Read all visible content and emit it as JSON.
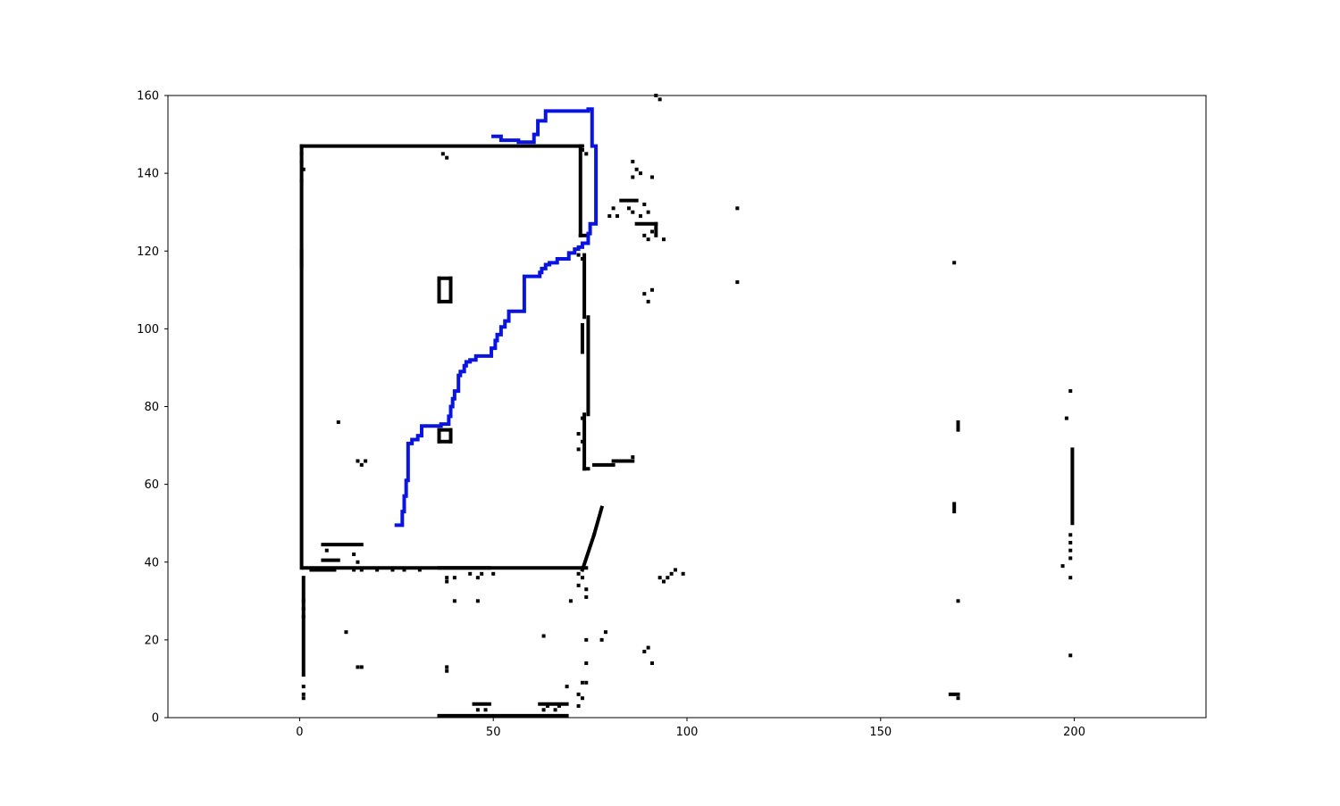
{
  "chart_data": {
    "type": "scatter",
    "title": "",
    "xlabel": "",
    "ylabel": "",
    "xlim": [
      -34,
      234
    ],
    "ylim": [
      0,
      160
    ],
    "xticks": [
      0,
      50,
      100,
      150,
      200
    ],
    "yticks": [
      0,
      20,
      40,
      60,
      80,
      100,
      120,
      140,
      160
    ],
    "grid": false,
    "colors": {
      "obstacle": "#000000",
      "path": "#0a14e0",
      "axes": "#000000",
      "background": "#ffffff"
    },
    "obstacle_segments": [
      {
        "x": [
          0.5,
          73
        ],
        "y": [
          147,
          147
        ]
      },
      {
        "x": [
          0.5,
          0.5
        ],
        "y": [
          38.5,
          147
        ]
      },
      {
        "x": [
          1,
          74
        ],
        "y": [
          38.5,
          38.5
        ]
      },
      {
        "x": [
          72.5,
          72.5
        ],
        "y": [
          124,
          147
        ]
      },
      {
        "x": [
          72.5,
          74
        ],
        "y": [
          124,
          124
        ]
      },
      {
        "x": [
          73.5,
          73.5
        ],
        "y": [
          103,
          119
        ]
      },
      {
        "x": [
          74.5,
          74.5
        ],
        "y": [
          78,
          103
        ]
      },
      {
        "x": [
          73.5,
          73.5
        ],
        "y": [
          64,
          78
        ]
      },
      {
        "x": [
          73.5,
          74.5
        ],
        "y": [
          64,
          64
        ]
      },
      {
        "x": [
          76,
          81
        ],
        "y": [
          65,
          65
        ]
      },
      {
        "x": [
          81,
          86
        ],
        "y": [
          66,
          66
        ]
      },
      {
        "x": [
          1,
          1
        ],
        "y": [
          11,
          36
        ]
      },
      {
        "x": [
          36,
          69
        ],
        "y": [
          0.5,
          0.5
        ]
      },
      {
        "x": [
          73,
          76
        ],
        "y": [
          38,
          47
        ]
      },
      {
        "x": [
          76,
          78
        ],
        "y": [
          47,
          54
        ]
      },
      {
        "x": [
          199.5,
          199.5
        ],
        "y": [
          50,
          69
        ]
      },
      {
        "x": [
          36,
          39
        ],
        "y": [
          107,
          107
        ]
      },
      {
        "x": [
          36,
          39
        ],
        "y": [
          113,
          113
        ]
      },
      {
        "x": [
          36,
          36
        ],
        "y": [
          107,
          113
        ]
      },
      {
        "x": [
          39,
          39
        ],
        "y": [
          107,
          113
        ]
      },
      {
        "x": [
          36,
          39
        ],
        "y": [
          71,
          71
        ]
      },
      {
        "x": [
          36,
          39
        ],
        "y": [
          74,
          74
        ]
      },
      {
        "x": [
          36,
          36
        ],
        "y": [
          71,
          74
        ]
      },
      {
        "x": [
          39,
          39
        ],
        "y": [
          71,
          74
        ]
      },
      {
        "x": [
          6,
          16
        ],
        "y": [
          44.5,
          44.5
        ]
      },
      {
        "x": [
          6,
          10
        ],
        "y": [
          40.5,
          40.5
        ]
      },
      {
        "x": [
          3,
          9
        ],
        "y": [
          38,
          38
        ]
      },
      {
        "x": [
          36,
          49
        ],
        "y": [
          38.5,
          38.5
        ]
      },
      {
        "x": [
          62,
          69
        ],
        "y": [
          3.5,
          3.5
        ]
      },
      {
        "x": [
          45,
          49
        ],
        "y": [
          3.5,
          3.5
        ]
      },
      {
        "x": [
          83,
          87
        ],
        "y": [
          133,
          133
        ]
      },
      {
        "x": [
          87,
          92
        ],
        "y": [
          127,
          127
        ]
      },
      {
        "x": [
          92,
          92
        ],
        "y": [
          124,
          127
        ]
      },
      {
        "x": [
          0.5,
          0.5
        ],
        "y": [
          116,
          120
        ]
      },
      {
        "x": [
          73,
          73
        ],
        "y": [
          94,
          101
        ]
      },
      {
        "x": [
          168,
          170
        ],
        "y": [
          6,
          6
        ]
      },
      {
        "x": [
          170,
          170
        ],
        "y": [
          74,
          76
        ]
      },
      {
        "x": [
          169,
          169
        ],
        "y": [
          53,
          55
        ]
      }
    ],
    "obstacle_points": [
      {
        "x": 0.5,
        "y": 145
      },
      {
        "x": 0.5,
        "y": 143
      },
      {
        "x": 1,
        "y": 141
      },
      {
        "x": 0.5,
        "y": 138
      },
      {
        "x": 37,
        "y": 145
      },
      {
        "x": 38,
        "y": 144
      },
      {
        "x": 73,
        "y": 146
      },
      {
        "x": 74,
        "y": 145
      },
      {
        "x": 92,
        "y": 160
      },
      {
        "x": 93,
        "y": 159
      },
      {
        "x": 86,
        "y": 143
      },
      {
        "x": 87,
        "y": 141
      },
      {
        "x": 88,
        "y": 140
      },
      {
        "x": 86,
        "y": 139
      },
      {
        "x": 91,
        "y": 139
      },
      {
        "x": 80,
        "y": 129
      },
      {
        "x": 81,
        "y": 131
      },
      {
        "x": 82,
        "y": 129
      },
      {
        "x": 85,
        "y": 131
      },
      {
        "x": 86,
        "y": 130
      },
      {
        "x": 89,
        "y": 132
      },
      {
        "x": 90,
        "y": 130
      },
      {
        "x": 88,
        "y": 129
      },
      {
        "x": 89,
        "y": 124
      },
      {
        "x": 90,
        "y": 123
      },
      {
        "x": 91,
        "y": 125
      },
      {
        "x": 94,
        "y": 123
      },
      {
        "x": 113,
        "y": 131
      },
      {
        "x": 113,
        "y": 112
      },
      {
        "x": 169,
        "y": 117
      },
      {
        "x": 89,
        "y": 109
      },
      {
        "x": 90,
        "y": 107
      },
      {
        "x": 91,
        "y": 110
      },
      {
        "x": 72,
        "y": 119
      },
      {
        "x": 73,
        "y": 118
      },
      {
        "x": 10,
        "y": 76
      },
      {
        "x": 15,
        "y": 66
      },
      {
        "x": 16,
        "y": 65
      },
      {
        "x": 17,
        "y": 66
      },
      {
        "x": 86,
        "y": 67
      },
      {
        "x": 73,
        "y": 77
      },
      {
        "x": 72,
        "y": 73
      },
      {
        "x": 73,
        "y": 71
      },
      {
        "x": 72,
        "y": 69
      },
      {
        "x": 199,
        "y": 84
      },
      {
        "x": 198,
        "y": 77
      },
      {
        "x": 199,
        "y": 47
      },
      {
        "x": 199,
        "y": 45
      },
      {
        "x": 199,
        "y": 43
      },
      {
        "x": 199,
        "y": 41
      },
      {
        "x": 197,
        "y": 39
      },
      {
        "x": 199,
        "y": 36
      },
      {
        "x": 199,
        "y": 16
      },
      {
        "x": 170,
        "y": 30
      },
      {
        "x": 7,
        "y": 43
      },
      {
        "x": 14,
        "y": 42
      },
      {
        "x": 15,
        "y": 40
      },
      {
        "x": 14,
        "y": 38
      },
      {
        "x": 16,
        "y": 38
      },
      {
        "x": 20,
        "y": 38
      },
      {
        "x": 24,
        "y": 38
      },
      {
        "x": 27,
        "y": 38
      },
      {
        "x": 31,
        "y": 38
      },
      {
        "x": 38,
        "y": 36
      },
      {
        "x": 38,
        "y": 35
      },
      {
        "x": 40,
        "y": 36
      },
      {
        "x": 44,
        "y": 37
      },
      {
        "x": 47,
        "y": 37
      },
      {
        "x": 46,
        "y": 36
      },
      {
        "x": 50,
        "y": 37
      },
      {
        "x": 72,
        "y": 37
      },
      {
        "x": 73,
        "y": 36
      },
      {
        "x": 72,
        "y": 34
      },
      {
        "x": 74,
        "y": 33
      },
      {
        "x": 74,
        "y": 31
      },
      {
        "x": 70,
        "y": 30
      },
      {
        "x": 40,
        "y": 30
      },
      {
        "x": 46,
        "y": 30
      },
      {
        "x": 93,
        "y": 36
      },
      {
        "x": 94,
        "y": 35
      },
      {
        "x": 95,
        "y": 36
      },
      {
        "x": 96,
        "y": 37
      },
      {
        "x": 97,
        "y": 38
      },
      {
        "x": 99,
        "y": 37
      },
      {
        "x": 1,
        "y": 30
      },
      {
        "x": 1,
        "y": 28
      },
      {
        "x": 1,
        "y": 26
      },
      {
        "x": 12,
        "y": 22
      },
      {
        "x": 63,
        "y": 21
      },
      {
        "x": 74,
        "y": 20
      },
      {
        "x": 78,
        "y": 20
      },
      {
        "x": 79,
        "y": 22
      },
      {
        "x": 89,
        "y": 17
      },
      {
        "x": 90,
        "y": 18
      },
      {
        "x": 91,
        "y": 14
      },
      {
        "x": 74,
        "y": 14
      },
      {
        "x": 15,
        "y": 13
      },
      {
        "x": 16,
        "y": 13
      },
      {
        "x": 38,
        "y": 13
      },
      {
        "x": 38,
        "y": 12
      },
      {
        "x": 1,
        "y": 8
      },
      {
        "x": 1,
        "y": 6
      },
      {
        "x": 1,
        "y": 5
      },
      {
        "x": 69,
        "y": 8
      },
      {
        "x": 73,
        "y": 9
      },
      {
        "x": 74,
        "y": 9
      },
      {
        "x": 72,
        "y": 6
      },
      {
        "x": 73,
        "y": 5
      },
      {
        "x": 72,
        "y": 3
      },
      {
        "x": 46,
        "y": 2
      },
      {
        "x": 48,
        "y": 2
      },
      {
        "x": 63,
        "y": 2
      },
      {
        "x": 64,
        "y": 3
      },
      {
        "x": 66,
        "y": 2
      },
      {
        "x": 67,
        "y": 3
      },
      {
        "x": 170,
        "y": 5
      }
    ],
    "series": [
      {
        "x": [
          24.5,
          26.5,
          26.5,
          27,
          27,
          27.5,
          27.5,
          28,
          28,
          29,
          29,
          30.5,
          30.5,
          31.5,
          31.5,
          32,
          32,
          36.5,
          36.5,
          38.5,
          38.5,
          39,
          39,
          39.5,
          39.5,
          40,
          40,
          41,
          41,
          41.5,
          41.5,
          42.5,
          42.5,
          43,
          43,
          44,
          44,
          44.5,
          44.5,
          45.5,
          45.5,
          49.5,
          49.5,
          50.5,
          50.5,
          51,
          51,
          52,
          52,
          53,
          53,
          54,
          54,
          58,
          58,
          62,
          62,
          62.5,
          62.5,
          63.5,
          63.5,
          64.5,
          64.5,
          66.5,
          66.5,
          69.5,
          69.5,
          71,
          71,
          72,
          72,
          73,
          73,
          74.5,
          74.5,
          75,
          75,
          76.5,
          76.5,
          75.5,
          75.5,
          74.5,
          74.5,
          73.5,
          73.5,
          63.5,
          63.5,
          61.5,
          61.5,
          60.5,
          60.5,
          56.5,
          56.5,
          52,
          52,
          49.5
        ],
        "y": [
          49.5,
          49.5,
          53,
          53,
          57,
          57,
          61,
          61,
          70.5,
          70.5,
          71.5,
          71.5,
          72.5,
          72.5,
          75,
          75,
          75,
          75,
          75.5,
          75.5,
          77.5,
          77.5,
          80,
          80,
          82,
          82,
          84,
          84,
          88,
          88,
          89,
          89,
          90.5,
          90.5,
          91.5,
          91.5,
          92,
          92,
          92,
          92,
          93,
          93,
          95,
          95,
          97,
          97,
          98.5,
          98.5,
          100.5,
          100.5,
          102,
          102,
          104.5,
          104.5,
          113.5,
          113.5,
          114.5,
          114.5,
          115.5,
          115.5,
          116.5,
          116.5,
          117,
          117,
          118,
          118,
          119.5,
          119.5,
          120.5,
          120.5,
          121,
          121,
          122,
          122,
          124.5,
          124.5,
          127,
          127,
          147,
          147,
          156.5,
          156.5,
          156,
          156,
          156,
          156,
          153.5,
          153.5,
          150,
          150,
          148,
          148,
          148.5,
          148.5,
          149.5,
          149.5
        ]
      }
    ]
  }
}
